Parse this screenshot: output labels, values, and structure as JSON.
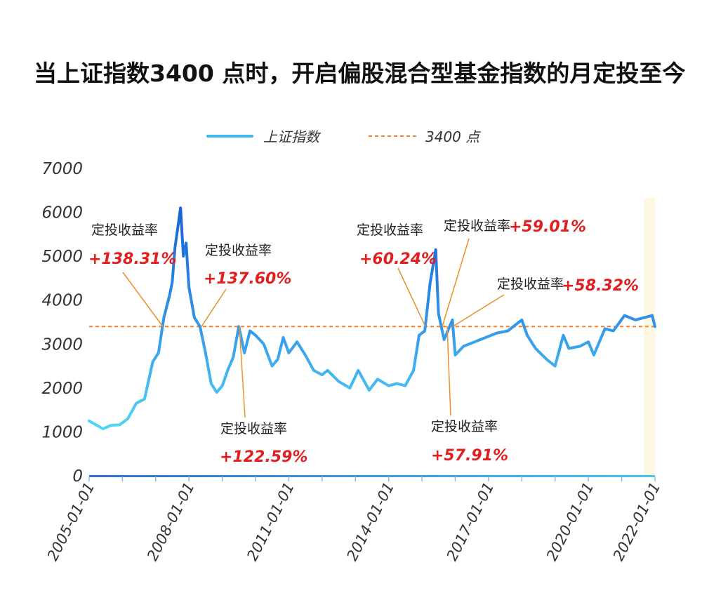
{
  "chart_data": {
    "type": "line",
    "title": "当上证指数3400 点时，开启偏股混合型基金指数的月定投至今",
    "xlabel": "",
    "ylabel": "",
    "x_ticks": [
      "2005-01-01",
      "2008-01-01",
      "2011-01-01",
      "2014-01-01",
      "2017-01-01",
      "2020-01-01",
      "2022-01-01"
    ],
    "y_ticks": [
      "0",
      "1000",
      "2000",
      "3000",
      "4000",
      "5000",
      "6000",
      "7000"
    ],
    "ylim": [
      0,
      7000
    ],
    "xlim": [
      "2005-01-01",
      "2022-01-01"
    ],
    "legend": {
      "position": "top-center"
    },
    "grid": false,
    "series": [
      {
        "name": "上证指数",
        "color": "#3fb6ee",
        "points": [
          [
            "2005-01",
            1250
          ],
          [
            "2005-03",
            1180
          ],
          [
            "2005-06",
            1070
          ],
          [
            "2005-09",
            1150
          ],
          [
            "2005-12",
            1160
          ],
          [
            "2006-03",
            1300
          ],
          [
            "2006-06",
            1650
          ],
          [
            "2006-09",
            1750
          ],
          [
            "2006-12",
            2600
          ],
          [
            "2007-02",
            2800
          ],
          [
            "2007-04",
            3600
          ],
          [
            "2007-06",
            4100
          ],
          [
            "2007-07",
            4400
          ],
          [
            "2007-08",
            5200
          ],
          [
            "2007-10",
            6100
          ],
          [
            "2007-11",
            5000
          ],
          [
            "2007-12",
            5300
          ],
          [
            "2008-01",
            4300
          ],
          [
            "2008-03",
            3600
          ],
          [
            "2008-05",
            3400
          ],
          [
            "2008-07",
            2800
          ],
          [
            "2008-09",
            2100
          ],
          [
            "2008-11",
            1900
          ],
          [
            "2009-01",
            2050
          ],
          [
            "2009-03",
            2400
          ],
          [
            "2009-05",
            2700
          ],
          [
            "2009-07",
            3400
          ],
          [
            "2009-09",
            2800
          ],
          [
            "2009-11",
            3300
          ],
          [
            "2010-01",
            3200
          ],
          [
            "2010-04",
            3000
          ],
          [
            "2010-07",
            2500
          ],
          [
            "2010-09",
            2650
          ],
          [
            "2010-11",
            3150
          ],
          [
            "2011-01",
            2800
          ],
          [
            "2011-04",
            3050
          ],
          [
            "2011-07",
            2750
          ],
          [
            "2011-10",
            2400
          ],
          [
            "2012-01",
            2300
          ],
          [
            "2012-03",
            2400
          ],
          [
            "2012-07",
            2150
          ],
          [
            "2012-11",
            2000
          ],
          [
            "2013-02",
            2400
          ],
          [
            "2013-06",
            1950
          ],
          [
            "2013-09",
            2200
          ],
          [
            "2014-01",
            2050
          ],
          [
            "2014-04",
            2100
          ],
          [
            "2014-07",
            2050
          ],
          [
            "2014-10",
            2400
          ],
          [
            "2014-12",
            3200
          ],
          [
            "2015-02",
            3300
          ],
          [
            "2015-04",
            4400
          ],
          [
            "2015-06",
            5150
          ],
          [
            "2015-07",
            3700
          ],
          [
            "2015-09",
            3100
          ],
          [
            "2015-12",
            3550
          ],
          [
            "2016-01",
            2750
          ],
          [
            "2016-04",
            2950
          ],
          [
            "2016-08",
            3050
          ],
          [
            "2016-12",
            3150
          ],
          [
            "2017-04",
            3250
          ],
          [
            "2017-08",
            3300
          ],
          [
            "2017-11",
            3450
          ],
          [
            "2018-01",
            3550
          ],
          [
            "2018-03",
            3200
          ],
          [
            "2018-06",
            2900
          ],
          [
            "2018-10",
            2650
          ],
          [
            "2019-01",
            2500
          ],
          [
            "2019-04",
            3200
          ],
          [
            "2019-06",
            2900
          ],
          [
            "2019-10",
            2950
          ],
          [
            "2020-01",
            3050
          ],
          [
            "2020-03",
            2750
          ],
          [
            "2020-07",
            3350
          ],
          [
            "2020-10",
            3300
          ],
          [
            "2021-02",
            3650
          ],
          [
            "2021-06",
            3550
          ],
          [
            "2021-09",
            3600
          ],
          [
            "2021-12",
            3650
          ],
          [
            "2022-01",
            3400
          ]
        ]
      },
      {
        "name": "3400 点",
        "color": "#f47f2b",
        "value": 3400,
        "style": "dashed"
      }
    ],
    "annotations": [
      {
        "label": "定投收益率",
        "value": "+138.31%"
      },
      {
        "label": "定投收益率",
        "value": "+137.60%"
      },
      {
        "label": "定投收益率",
        "value": "+122.59%"
      },
      {
        "label": "定投收益率",
        "value": "+60.24%"
      },
      {
        "label": "定投收益率",
        "value": "+59.01%"
      },
      {
        "label": "定投收益率",
        "value": "+58.32%"
      },
      {
        "label": "定投收益率",
        "value": "+57.91%"
      }
    ],
    "highlight_band": {
      "from": "2021-09-01",
      "to": "2022-01-01",
      "color": "#fdf7e3"
    }
  }
}
